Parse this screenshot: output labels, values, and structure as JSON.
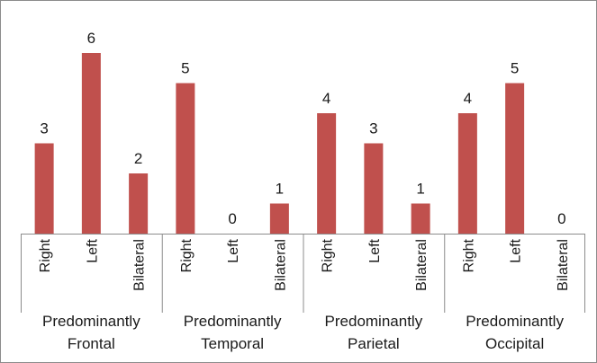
{
  "chart_data": {
    "type": "bar",
    "bar_color": "#c0504d",
    "groups": [
      {
        "label_lines": [
          "Predominantly",
          "Frontal"
        ],
        "categories": [
          "Right",
          "Left",
          "Bilateral"
        ],
        "values": [
          3,
          6,
          2
        ]
      },
      {
        "label_lines": [
          "Predominantly",
          "Temporal"
        ],
        "categories": [
          "Right",
          "Left",
          "Bilateral"
        ],
        "values": [
          5,
          0,
          1
        ]
      },
      {
        "label_lines": [
          "Predominantly",
          "Parietal"
        ],
        "categories": [
          "Right",
          "Left",
          "Bilateral"
        ],
        "values": [
          4,
          3,
          1
        ]
      },
      {
        "label_lines": [
          "Predominantly",
          "Occipital"
        ],
        "categories": [
          "Right",
          "Left",
          "Bilateral"
        ],
        "values": [
          4,
          5,
          0
        ]
      }
    ],
    "ylim": [
      0,
      6
    ],
    "data_labels": true,
    "grid": false,
    "legend": "none"
  }
}
